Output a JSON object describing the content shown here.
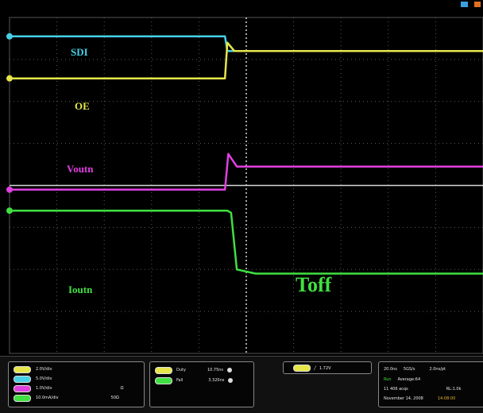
{
  "chart_data": {
    "type": "line",
    "title": "",
    "xlabel": "",
    "ylabel": "",
    "annotation": "Toff",
    "grid": true,
    "x_divisions": 10,
    "y_divisions": 8,
    "series": [
      {
        "name": "SDI",
        "color": "#46d0e6",
        "x": [
          0,
          4.55,
          4.6,
          10
        ],
        "y": [
          3.55,
          3.55,
          3.2,
          3.2
        ]
      },
      {
        "name": "OE",
        "color": "#e6e64a",
        "x": [
          0,
          4.55,
          4.6,
          4.75,
          10
        ],
        "y": [
          2.55,
          2.55,
          3.4,
          3.2,
          3.2
        ]
      },
      {
        "name": "Voutn",
        "color": "#e040e0",
        "x": [
          0,
          4.55,
          4.62,
          4.8,
          10
        ],
        "y": [
          -0.1,
          -0.1,
          0.75,
          0.45,
          0.45
        ]
      },
      {
        "name": "Ioutn",
        "color": "#40e040",
        "x": [
          0,
          4.6,
          4.68,
          4.8,
          5.2,
          10
        ],
        "y": [
          -0.6,
          -0.6,
          -0.65,
          -2.0,
          -2.1,
          -2.1
        ]
      }
    ]
  },
  "labels": {
    "sdi": "SDI",
    "oe": "OE",
    "voutn": "Voutn",
    "ioutn": "Ioutn",
    "toff": "Toff"
  },
  "status": {
    "channels": [
      {
        "color": "#e6e64a",
        "scale": "2.0V/div",
        "extra": ""
      },
      {
        "color": "#46d0e6",
        "scale": "5.0V/div",
        "extra": ""
      },
      {
        "color": "#e040e0",
        "scale": "1.0V/div",
        "extra": "Ω"
      },
      {
        "color": "#40e040",
        "scale": "10.0mA/div",
        "extra": "50Ω"
      }
    ],
    "measurements": [
      {
        "color": "#e6e64a",
        "name": "Duty",
        "value": "10.75ns"
      },
      {
        "color": "#40e040",
        "name": "Fall",
        "value": "3.320ns"
      }
    ],
    "trigger": "1.72V",
    "horizontal": {
      "timebase": "20.0ns",
      "sample_rate": "5GS/s",
      "record": "2.0ns/pt",
      "run_state": "Run",
      "acquire": "Average:64",
      "acqs": "11 406 acqs",
      "record_length": "RL:1.0k",
      "date": "November 14, 2008",
      "time": "14:08:00"
    }
  }
}
